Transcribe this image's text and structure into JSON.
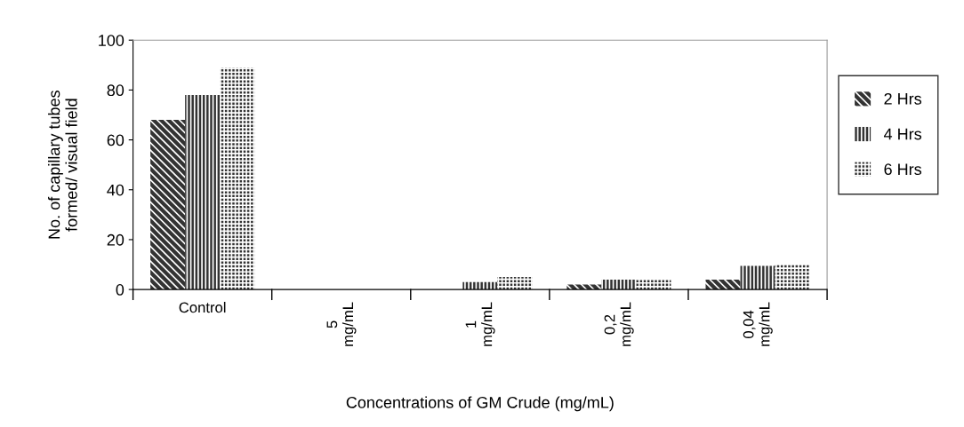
{
  "chart_data": {
    "type": "bar",
    "categories": [
      "Control",
      "5\nmg/mL",
      "1\nmg/mL",
      "0,2\nmg/mL",
      "0,04\nmg/mL"
    ],
    "series": [
      {
        "name": "2 Hrs",
        "color": "#333333",
        "values": [
          68,
          0,
          0,
          2,
          4
        ]
      },
      {
        "name": "4 Hrs",
        "color": "#333333",
        "values": [
          78,
          0,
          3,
          4,
          9.5
        ]
      },
      {
        "name": "6 Hrs",
        "color": "#333333",
        "values": [
          89,
          0,
          5,
          4,
          10
        ]
      }
    ],
    "xlabel": "Concentrations of GM Crude (mg/mL)",
    "ylabel": "No. of capillary tubes\nformed/ visual field",
    "ylim": [
      0,
      100
    ],
    "yticks": [
      0,
      20,
      40,
      60,
      80,
      100
    ],
    "legend": "right",
    "grid": false
  }
}
